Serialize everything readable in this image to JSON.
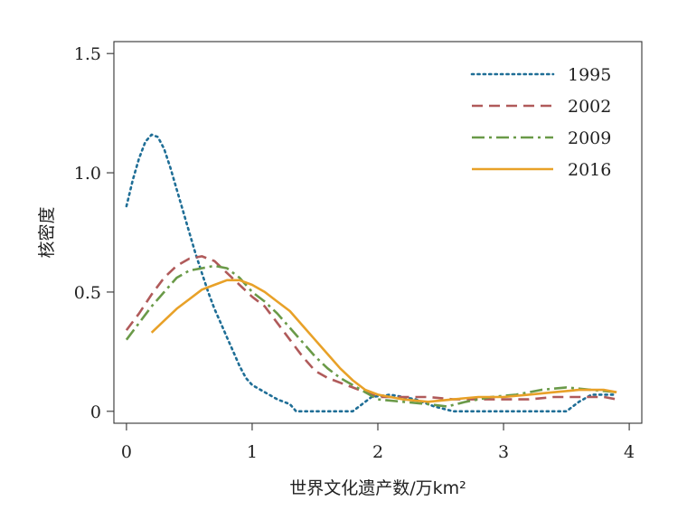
{
  "chart_data": {
    "type": "line",
    "xlabel": "世界文化遗产数/万km²",
    "ylabel": "核密度",
    "xlim": [
      -0.1,
      4.1
    ],
    "ylim": [
      -0.05,
      1.55
    ],
    "x_ticks": [
      {
        "value": 0,
        "label": "0"
      },
      {
        "value": 1,
        "label": "1"
      },
      {
        "value": 2,
        "label": "2"
      },
      {
        "value": 3,
        "label": "3"
      },
      {
        "value": 4,
        "label": "4"
      }
    ],
    "y_ticks": [
      {
        "value": 0,
        "label": "0"
      },
      {
        "value": 0.5,
        "label": "0.5"
      },
      {
        "value": 1.0,
        "label": "1.0"
      },
      {
        "value": 1.5,
        "label": "1.5"
      }
    ],
    "grid": false,
    "legend_position": "top-right",
    "series": [
      {
        "name": "1995",
        "color": "#1f6e96",
        "dash": "dotted",
        "x": [
          0,
          0.05,
          0.1,
          0.15,
          0.2,
          0.25,
          0.3,
          0.35,
          0.4,
          0.45,
          0.5,
          0.55,
          0.6,
          0.65,
          0.7,
          0.75,
          0.8,
          0.85,
          0.9,
          0.95,
          1.0,
          1.1,
          1.2,
          1.3,
          1.35,
          1.45,
          1.6,
          1.8,
          1.9,
          1.95,
          2.1,
          2.3,
          2.45,
          2.6,
          2.8,
          3.0,
          3.2,
          3.4,
          3.5,
          3.6,
          3.7,
          3.9
        ],
        "y": [
          0.86,
          0.97,
          1.06,
          1.13,
          1.16,
          1.15,
          1.1,
          1.02,
          0.93,
          0.84,
          0.75,
          0.66,
          0.58,
          0.5,
          0.43,
          0.37,
          0.31,
          0.25,
          0.19,
          0.14,
          0.11,
          0.08,
          0.05,
          0.03,
          0.0,
          0.0,
          0.0,
          0.0,
          0.04,
          0.06,
          0.07,
          0.05,
          0.02,
          0.0,
          0.0,
          0.0,
          0.0,
          0.0,
          0.0,
          0.04,
          0.07,
          0.07
        ]
      },
      {
        "name": "2002",
        "color": "#b05a5a",
        "dash": "dashed",
        "x": [
          0,
          0.1,
          0.2,
          0.3,
          0.4,
          0.5,
          0.6,
          0.7,
          0.8,
          0.9,
          1.0,
          1.1,
          1.2,
          1.3,
          1.4,
          1.5,
          1.6,
          1.7,
          1.8,
          1.9,
          2.0,
          2.1,
          2.2,
          2.4,
          2.6,
          2.8,
          3.0,
          3.2,
          3.4,
          3.6,
          3.8,
          3.9
        ],
        "y": [
          0.34,
          0.41,
          0.49,
          0.56,
          0.61,
          0.64,
          0.65,
          0.63,
          0.58,
          0.53,
          0.48,
          0.44,
          0.37,
          0.3,
          0.23,
          0.17,
          0.14,
          0.12,
          0.1,
          0.08,
          0.06,
          0.06,
          0.06,
          0.06,
          0.05,
          0.05,
          0.05,
          0.05,
          0.06,
          0.06,
          0.06,
          0.05
        ]
      },
      {
        "name": "2009",
        "color": "#6a9a48",
        "dash": "dashdot",
        "x": [
          0,
          0.1,
          0.2,
          0.3,
          0.4,
          0.5,
          0.6,
          0.7,
          0.8,
          0.9,
          1.0,
          1.1,
          1.2,
          1.3,
          1.4,
          1.5,
          1.6,
          1.7,
          1.8,
          1.9,
          2.0,
          2.2,
          2.4,
          2.55,
          2.7,
          2.9,
          3.1,
          3.3,
          3.5,
          3.7,
          3.9
        ],
        "y": [
          0.3,
          0.37,
          0.44,
          0.5,
          0.56,
          0.59,
          0.6,
          0.61,
          0.6,
          0.56,
          0.5,
          0.46,
          0.41,
          0.35,
          0.29,
          0.23,
          0.18,
          0.14,
          0.11,
          0.08,
          0.05,
          0.04,
          0.03,
          0.02,
          0.04,
          0.06,
          0.07,
          0.09,
          0.1,
          0.09,
          0.08
        ]
      },
      {
        "name": "2016",
        "color": "#e8a128",
        "dash": "solid",
        "x": [
          0.2,
          0.3,
          0.4,
          0.5,
          0.6,
          0.7,
          0.8,
          0.9,
          1.0,
          1.1,
          1.2,
          1.3,
          1.4,
          1.5,
          1.6,
          1.7,
          1.8,
          1.9,
          2.0,
          2.2,
          2.4,
          2.6,
          2.8,
          3.0,
          3.2,
          3.4,
          3.6,
          3.8,
          3.9
        ],
        "y": [
          0.33,
          0.38,
          0.43,
          0.47,
          0.51,
          0.53,
          0.55,
          0.55,
          0.53,
          0.5,
          0.46,
          0.42,
          0.36,
          0.3,
          0.24,
          0.18,
          0.13,
          0.09,
          0.07,
          0.05,
          0.04,
          0.05,
          0.06,
          0.06,
          0.07,
          0.08,
          0.09,
          0.09,
          0.08
        ]
      }
    ]
  }
}
